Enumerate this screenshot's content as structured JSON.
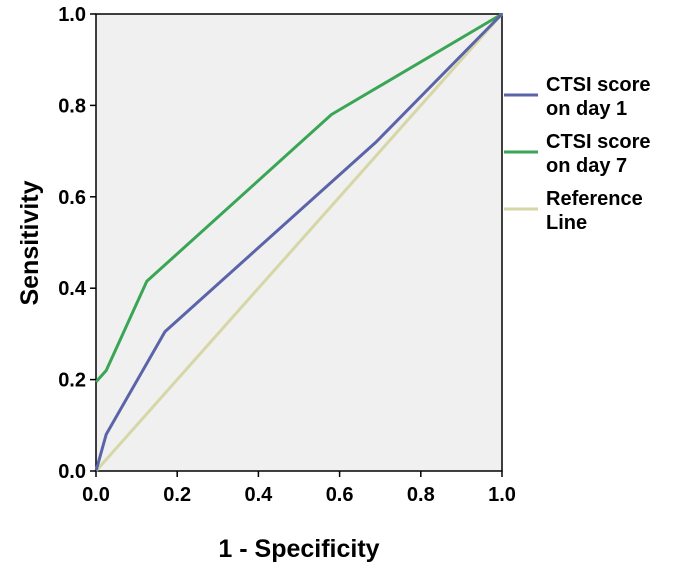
{
  "chart_data": {
    "type": "line",
    "title": "",
    "xlabel": "1 - Specificity",
    "ylabel": "Sensitivity",
    "xlim": [
      0.0,
      1.0
    ],
    "ylim": [
      0.0,
      1.0
    ],
    "x_ticks": [
      "0.0",
      "0.2",
      "0.4",
      "0.6",
      "0.8",
      "1.0"
    ],
    "y_ticks": [
      "0.0",
      "0.2",
      "0.4",
      "0.6",
      "0.8",
      "1.0"
    ],
    "grid": false,
    "plot_background": "#f0f0f0",
    "legend_position": "right",
    "series": [
      {
        "name_lines": [
          "CTSI score",
          "on day 1"
        ],
        "color": "#5b64a8",
        "points": [
          [
            0.0,
            0.0
          ],
          [
            0.025,
            0.08
          ],
          [
            0.17,
            0.305
          ],
          [
            0.69,
            0.72
          ],
          [
            1.0,
            1.0
          ]
        ]
      },
      {
        "name_lines": [
          "CTSI score",
          "on day 7"
        ],
        "color": "#3aa655",
        "points": [
          [
            0.0,
            0.195
          ],
          [
            0.025,
            0.22
          ],
          [
            0.125,
            0.415
          ],
          [
            0.58,
            0.78
          ],
          [
            1.0,
            1.0
          ]
        ]
      },
      {
        "name_lines": [
          "Reference",
          "Line"
        ],
        "color": "#d6d6a6",
        "points": [
          [
            0.0,
            0.0
          ],
          [
            1.0,
            1.0
          ]
        ]
      }
    ]
  }
}
